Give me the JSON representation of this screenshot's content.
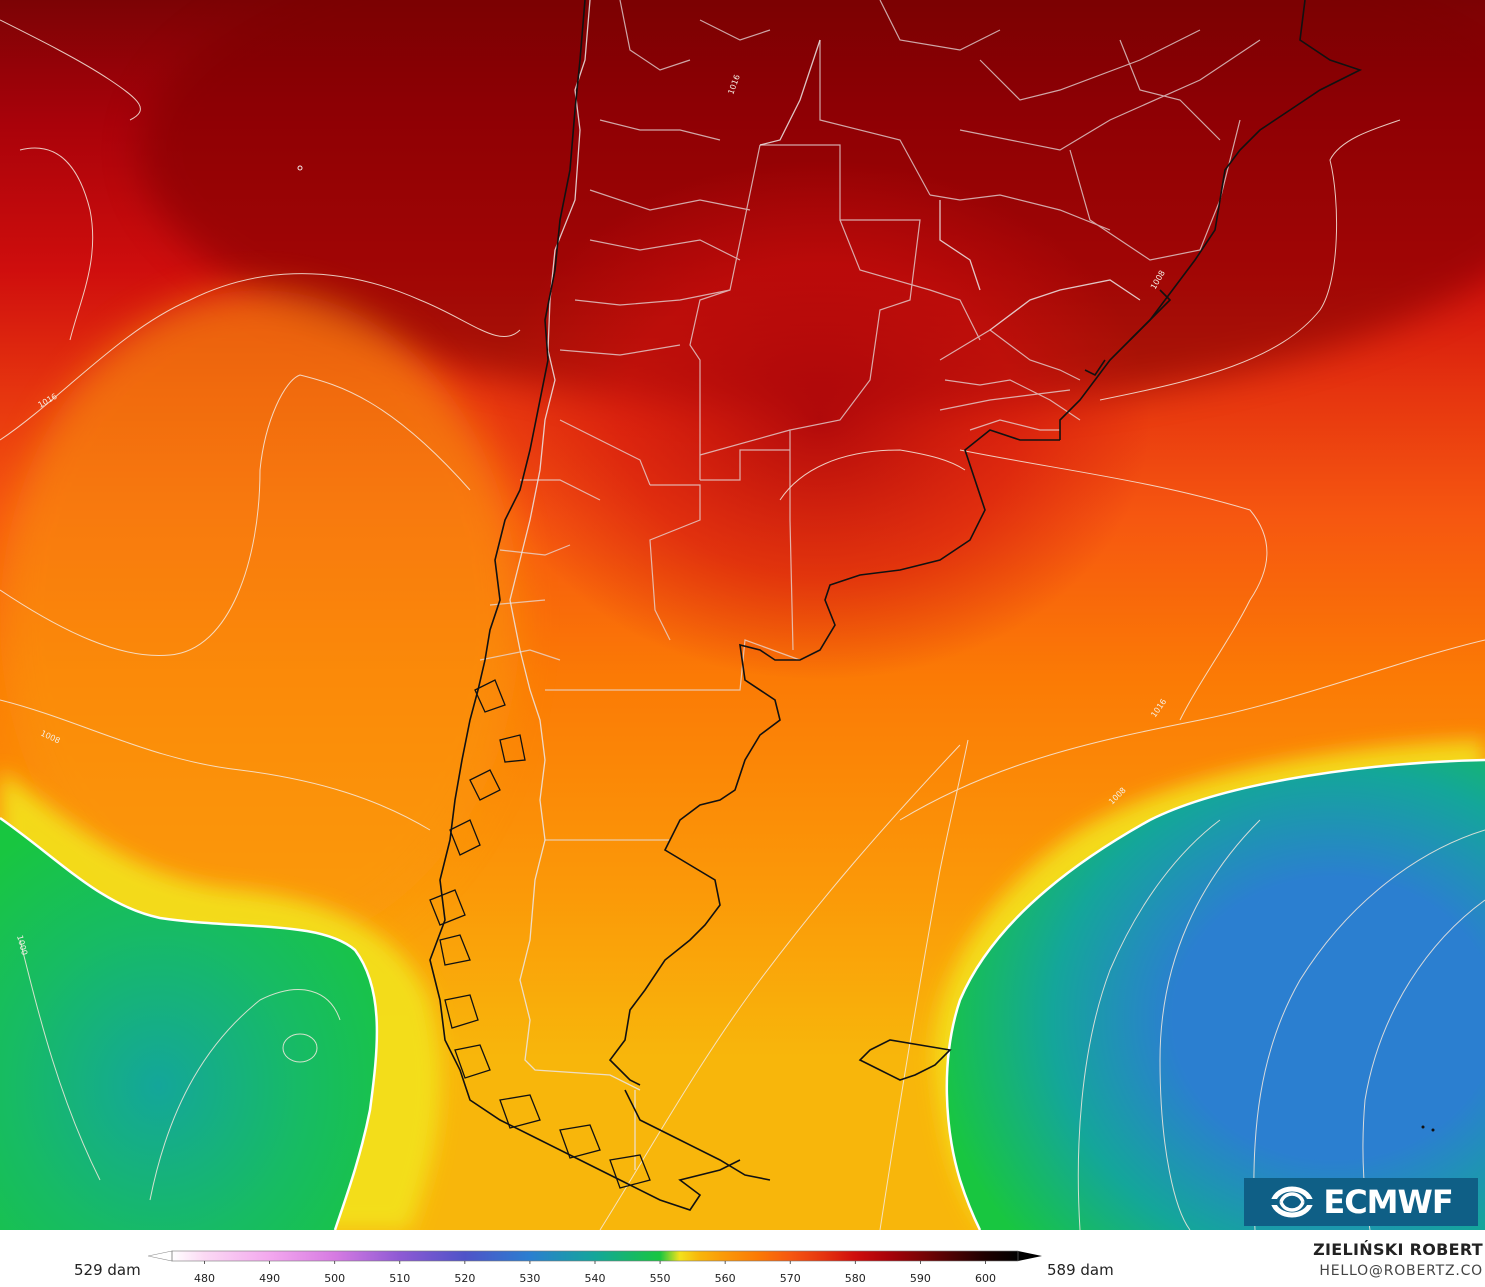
{
  "map": {
    "isobar_labels": [
      "1016",
      "1008",
      "1000",
      "1016",
      "1008",
      "1016",
      "1008"
    ]
  },
  "logo": {
    "text": "ECMWF",
    "icon": "ecmwf-logo-icon"
  },
  "colorbar": {
    "min_label": "529 dam",
    "max_label": "589 dam",
    "ticks": [
      "480",
      "490",
      "500",
      "510",
      "520",
      "530",
      "540",
      "550",
      "560",
      "570",
      "580",
      "590",
      "600"
    ],
    "range": [
      475,
      605
    ],
    "colors": {
      "475": "#ffffff",
      "480": "#fbd9f4",
      "490": "#f3a8ee",
      "500": "#d67be2",
      "510": "#8e5ad4",
      "520": "#4f53c8",
      "530": "#2b7fd0",
      "540": "#14a69a",
      "550": "#18c640",
      "553": "#f3e21c",
      "556": "#f8b60b",
      "560": "#fb9808",
      "565": "#fb7a05",
      "570": "#f65710",
      "575": "#e6350f",
      "580": "#cf0e0d",
      "585": "#a9020a",
      "590": "#7c0305",
      "595": "#4b0203",
      "600": "#1e0000",
      "605": "#000000"
    }
  },
  "author": {
    "name": "ZIELIŃSKI ROBERT",
    "email": "HELLO@ROBERTZ.CO"
  }
}
